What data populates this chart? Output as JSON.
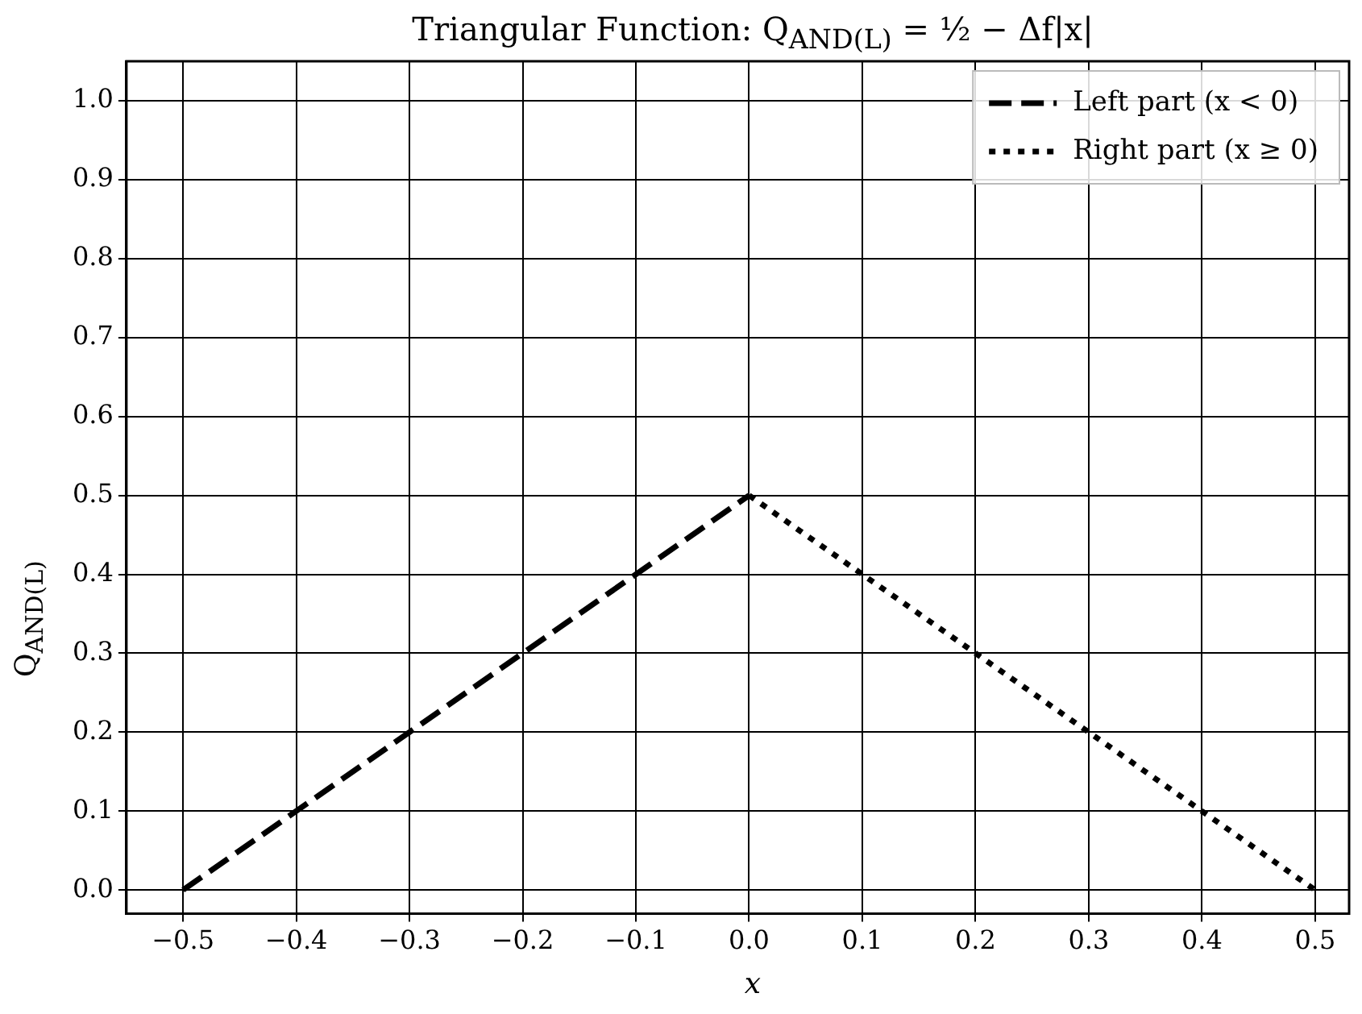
{
  "chart_data": {
    "type": "line",
    "title": "Triangular Function: Q$_{AND(L)}$ = ½ − Δf|x|",
    "xlabel": "x",
    "ylabel": "Q$_{AND(L)}$",
    "series": [
      {
        "name": "Left part (x < 0)",
        "color": "#000000",
        "line_style": "dashed",
        "x": [
          -0.5,
          0
        ],
        "values": [
          0,
          0.5
        ]
      },
      {
        "name": "Right part (x ≥ 0)",
        "color": "#000000",
        "line_style": "dotted",
        "x": [
          0,
          0.5
        ],
        "values": [
          0.5,
          0
        ]
      }
    ],
    "xlim": [
      -0.55,
      0.53
    ],
    "ylim": [
      -0.03,
      1.05
    ],
    "xticks": [
      {
        "value": -0.5,
        "label": "−0.5"
      },
      {
        "value": -0.4,
        "label": "−0.4"
      },
      {
        "value": -0.3,
        "label": "−0.3"
      },
      {
        "value": -0.2,
        "label": "−0.2"
      },
      {
        "value": -0.1,
        "label": "−0.1"
      },
      {
        "value": 0,
        "label": "0.0"
      },
      {
        "value": 0.1,
        "label": "0.1"
      },
      {
        "value": 0.2,
        "label": "0.2"
      },
      {
        "value": 0.3,
        "label": "0.3"
      },
      {
        "value": 0.4,
        "label": "0.4"
      },
      {
        "value": 0.5,
        "label": "0.5"
      }
    ],
    "yticks": [
      {
        "value": 0,
        "label": "0.0"
      },
      {
        "value": 0.1,
        "label": "0.1"
      },
      {
        "value": 0.2,
        "label": "0.2"
      },
      {
        "value": 0.3,
        "label": "0.3"
      },
      {
        "value": 0.4,
        "label": "0.4"
      },
      {
        "value": 0.5,
        "label": "0.5"
      },
      {
        "value": 0.6,
        "label": "0.6"
      },
      {
        "value": 0.7,
        "label": "0.7"
      },
      {
        "value": 0.8,
        "label": "0.8"
      },
      {
        "value": 0.9,
        "label": "0.9"
      },
      {
        "value": 1.0,
        "label": "1.0"
      }
    ],
    "grid": true,
    "legend": "top right",
    "marker": "none"
  }
}
